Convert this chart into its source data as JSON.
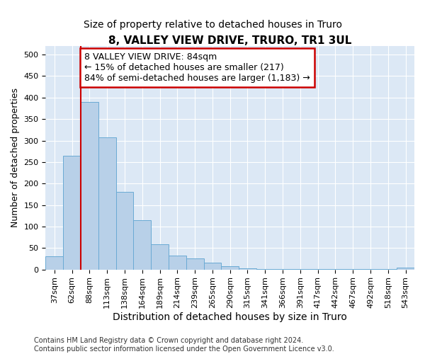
{
  "title": "8, VALLEY VIEW DRIVE, TRURO, TR1 3UL",
  "subtitle": "Size of property relative to detached houses in Truro",
  "xlabel": "Distribution of detached houses by size in Truro",
  "ylabel": "Number of detached properties",
  "categories": [
    "37sqm",
    "62sqm",
    "88sqm",
    "113sqm",
    "138sqm",
    "164sqm",
    "189sqm",
    "214sqm",
    "239sqm",
    "265sqm",
    "290sqm",
    "315sqm",
    "341sqm",
    "366sqm",
    "391sqm",
    "417sqm",
    "442sqm",
    "467sqm",
    "492sqm",
    "518sqm",
    "543sqm"
  ],
  "values": [
    30,
    265,
    390,
    308,
    180,
    115,
    58,
    32,
    25,
    15,
    8,
    2,
    1,
    1,
    1,
    1,
    1,
    1,
    1,
    1,
    5
  ],
  "bar_color": "#b8d0e8",
  "bar_edge_color": "#6aaad4",
  "vline_x": 2,
  "vline_color": "#cc0000",
  "annotation_text": "8 VALLEY VIEW DRIVE: 84sqm\n← 15% of detached houses are smaller (217)\n84% of semi-detached houses are larger (1,183) →",
  "annotation_box_color": "#ffffff",
  "annotation_box_edge_color": "#cc0000",
  "ylim": [
    0,
    520
  ],
  "yticks": [
    0,
    50,
    100,
    150,
    200,
    250,
    300,
    350,
    400,
    450,
    500
  ],
  "background_color": "#ffffff",
  "plot_bg_color": "#dce8f5",
  "grid_color": "#ffffff",
  "title_fontsize": 11,
  "subtitle_fontsize": 10,
  "xlabel_fontsize": 10,
  "ylabel_fontsize": 9,
  "tick_fontsize": 8,
  "annotation_fontsize": 9,
  "footnote": "Contains HM Land Registry data © Crown copyright and database right 2024.\nContains public sector information licensed under the Open Government Licence v3.0.",
  "footnote_fontsize": 7
}
